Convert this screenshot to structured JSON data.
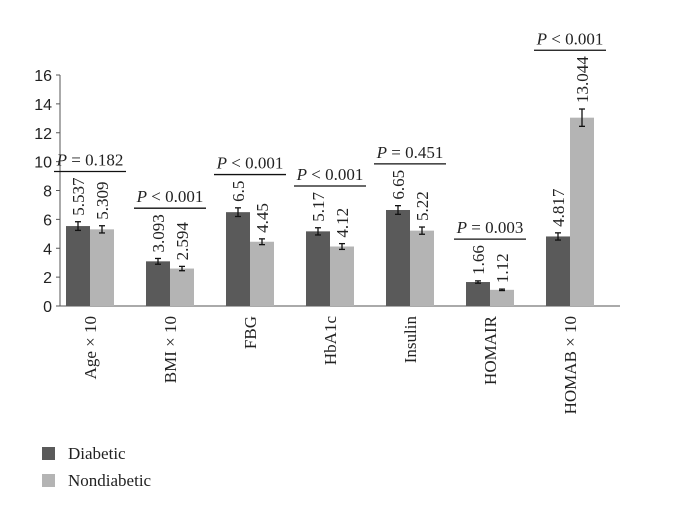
{
  "chart_data": {
    "type": "bar",
    "categories": [
      "Age × 10",
      "BMI × 10",
      "FBG",
      "HbA1c",
      "Insulin",
      "HOMAIR",
      "HOMAB × 10"
    ],
    "series": [
      {
        "name": "Diabetic",
        "color": "#5a5a5a",
        "values": [
          5.537,
          3.093,
          6.5,
          5.17,
          6.65,
          1.66,
          4.817
        ],
        "errors": [
          0.3,
          0.2,
          0.3,
          0.25,
          0.3,
          0.08,
          0.25
        ]
      },
      {
        "name": "Nondiabetic",
        "color": "#b4b4b4",
        "values": [
          5.309,
          2.594,
          4.45,
          4.12,
          5.22,
          1.12,
          13.044
        ],
        "errors": [
          0.25,
          0.15,
          0.2,
          0.2,
          0.25,
          0.05,
          0.6
        ]
      }
    ],
    "annotations": [
      "P = 0.182",
      "P < 0.001",
      "P < 0.001",
      "P < 0.001",
      "P = 0.451",
      "P = 0.003",
      "P < 0.001"
    ],
    "ylim": [
      0,
      16
    ],
    "yticks": [
      0,
      2,
      4,
      6,
      8,
      10,
      12,
      14,
      16
    ],
    "grid": false,
    "legend": "bottom-left"
  }
}
